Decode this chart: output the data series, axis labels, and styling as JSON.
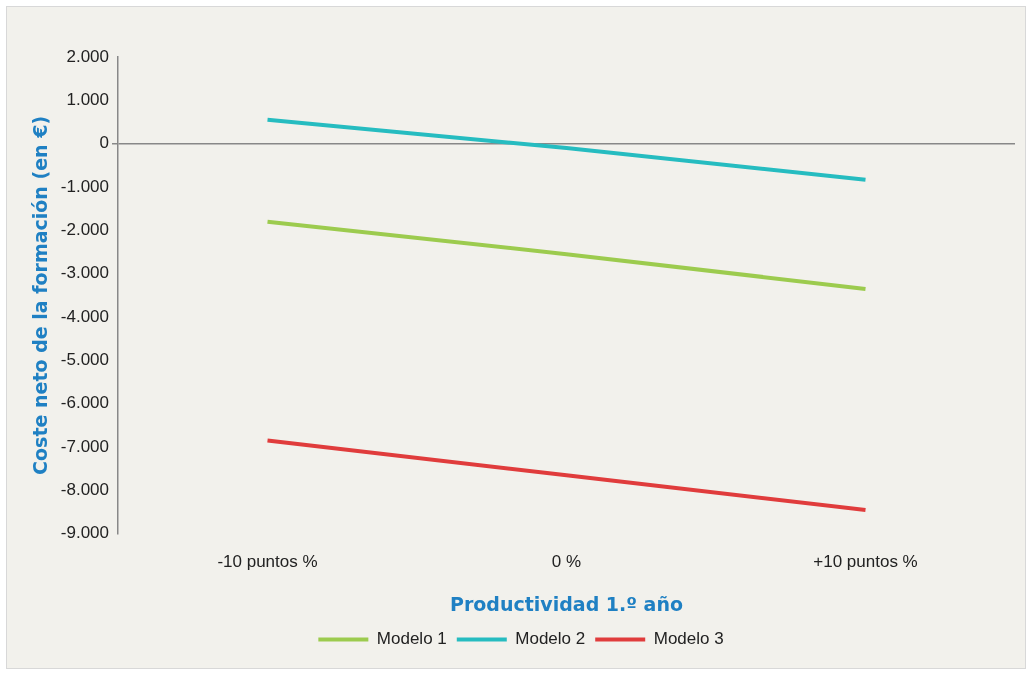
{
  "chart_data": {
    "type": "line",
    "xlabel": "Productividad 1.º año",
    "ylabel": "Coste neto de la formación (en €)",
    "categories": [
      "-10 puntos %",
      "0 %",
      "+10 puntos %"
    ],
    "series": [
      {
        "name": "Modelo 1",
        "color": "#9ccb4e",
        "values": [
          -1800,
          -2550,
          -3350
        ]
      },
      {
        "name": "Modelo 2",
        "color": "#26bcc0",
        "values": [
          550,
          -100,
          -830
        ]
      },
      {
        "name": "Modelo 3",
        "color": "#e03c3c",
        "values": [
          -6850,
          -7650,
          -8450
        ]
      }
    ],
    "ylim": [
      -9000,
      2000
    ],
    "yticks": [
      {
        "value": 2000,
        "label": "2.000"
      },
      {
        "value": 1000,
        "label": "1.000"
      },
      0,
      {
        "value": -1000,
        "label": "-1.000"
      },
      {
        "value": -2000,
        "label": "-2.000"
      },
      {
        "value": -3000,
        "label": "-3.000"
      },
      {
        "value": -4000,
        "label": "-4.000"
      },
      {
        "value": -5000,
        "label": "-5.000"
      },
      {
        "value": -6000,
        "label": "-6.000"
      },
      {
        "value": -7000,
        "label": "-7.000"
      },
      {
        "value": -8000,
        "label": "-8.000"
      },
      {
        "value": -9000,
        "label": "-9.000"
      }
    ],
    "legend": "bottom",
    "marker": "none",
    "line_style": "solid"
  }
}
